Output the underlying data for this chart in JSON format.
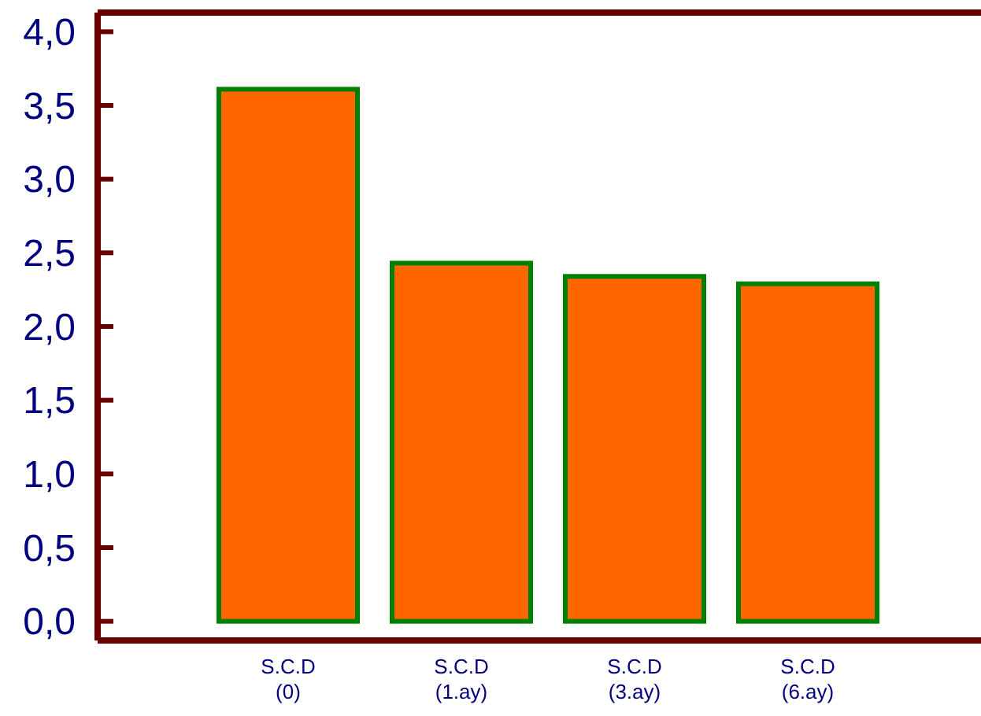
{
  "chart_data": {
    "type": "bar",
    "categories": [
      "S.C.D\n(0)",
      "S.C.D\n(1.ay)",
      "S.C.D\n(3.ay)",
      "S.C.D\n(6.ay)"
    ],
    "series": [
      {
        "color": "#ff6600",
        "values": [
          3.61,
          2.43,
          2.34,
          2.29
        ]
      }
    ],
    "ylim": [
      -0.13,
      4.13
    ],
    "yticks": [
      {
        "value": 0,
        "label": "0,0"
      },
      {
        "value": 0.5,
        "label": "0,5"
      },
      {
        "value": 1,
        "label": "1,0"
      },
      {
        "value": 1.5,
        "label": "1,5"
      },
      {
        "value": 2,
        "label": "2,0"
      },
      {
        "value": 2.5,
        "label": "2,5"
      },
      {
        "value": 3,
        "label": "3,0"
      },
      {
        "value": 3.5,
        "label": "3,5"
      },
      {
        "value": 4,
        "label": "4,0"
      }
    ],
    "grid": false
  }
}
